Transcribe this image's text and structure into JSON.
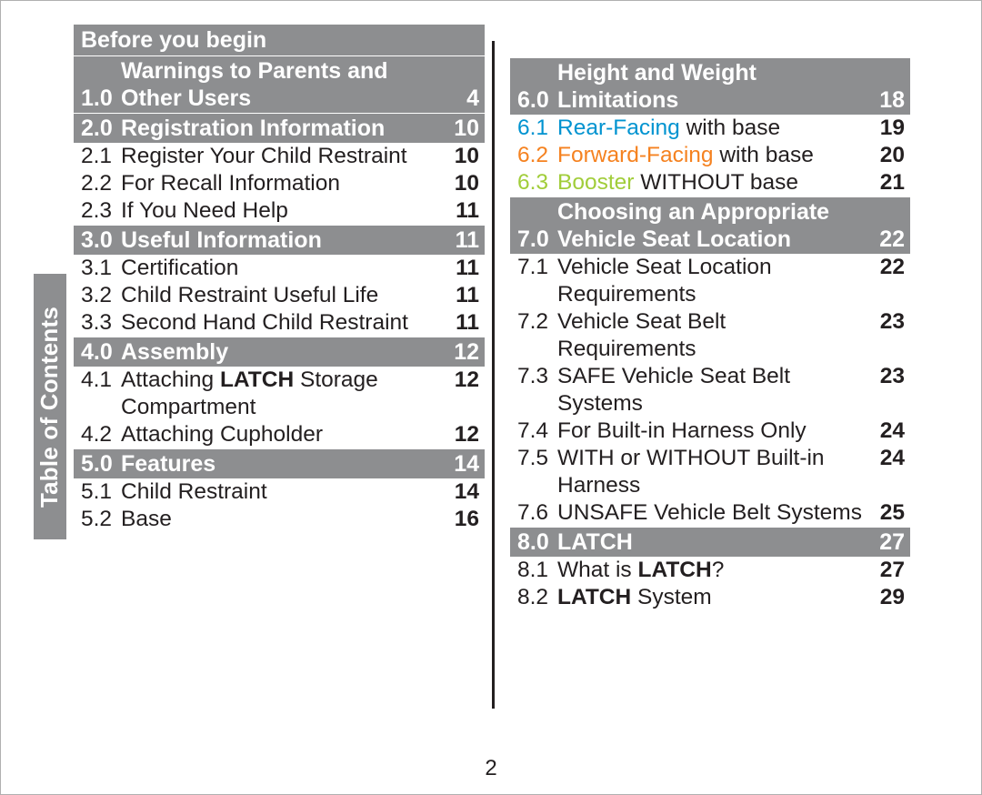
{
  "sideTab": "Table of Contents",
  "pageNumber": "2",
  "left": {
    "banner": "Before you begin",
    "sections": [
      {
        "num": "1.0",
        "title": "Warnings to Parents and Other Users",
        "page": "4",
        "multi": true
      },
      {
        "num": "2.0",
        "title": "Registration Information",
        "page": "10",
        "subs": [
          {
            "num": "2.1",
            "title": "Register Your Child Restraint",
            "page": "10"
          },
          {
            "num": "2.2",
            "title": "For Recall Information",
            "page": "10"
          },
          {
            "num": "2.3",
            "title": "If You Need Help",
            "page": "11"
          }
        ]
      },
      {
        "num": "3.0",
        "title": "Useful Information",
        "page": "11",
        "subs": [
          {
            "num": "3.1",
            "title": "Certification",
            "page": "11"
          },
          {
            "num": "3.2",
            "title": "Child Restraint Useful Life",
            "page": "11"
          },
          {
            "num": "3.3",
            "title": "Second Hand Child Restraint",
            "page": "11"
          }
        ]
      },
      {
        "num": "4.0",
        "title": "Assembly",
        "page": "12",
        "subs": [
          {
            "num": "4.1",
            "titleHtml": "Attaching <span class=\"b\">LATCH</span> Storage Compartment",
            "page": "12"
          },
          {
            "num": "4.2",
            "title": "Attaching Cupholder",
            "page": "12"
          }
        ]
      },
      {
        "num": "5.0",
        "title": "Features",
        "page": "14",
        "subs": [
          {
            "num": "5.1",
            "title": "Child Restraint",
            "page": "14"
          },
          {
            "num": "5.2",
            "title": "Base",
            "page": "16"
          }
        ]
      }
    ]
  },
  "right": {
    "sections": [
      {
        "num": "6.0",
        "title": "Height and Weight Limitations",
        "page": "18",
        "multi": true,
        "subs": [
          {
            "num": "6.1",
            "titleHtml": "Rear-Facing <span style=\"color:#231f20\">with base</span>",
            "page": "19",
            "color": "c-blue"
          },
          {
            "num": "6.2",
            "titleHtml": "Forward-Facing <span style=\"color:#231f20\">with base</span>",
            "page": "20",
            "color": "c-orange"
          },
          {
            "num": "6.3",
            "titleHtml": "Booster <span style=\"color:#231f20\">WITHOUT base</span>",
            "page": "21",
            "color": "c-green"
          }
        ]
      },
      {
        "num": "7.0",
        "title": "Choosing an Appropriate Vehicle Seat Location",
        "page": "22",
        "multi": true,
        "subs": [
          {
            "num": "7.1",
            "title": "Vehicle Seat Location Requirements",
            "page": "22"
          },
          {
            "num": "7.2",
            "title": "Vehicle Seat Belt Requirements",
            "page": "23"
          },
          {
            "num": "7.3",
            "title": "SAFE Vehicle Seat Belt Systems",
            "page": "23"
          },
          {
            "num": "7.4",
            "title": "For Built-in Harness Only",
            "page": "24"
          },
          {
            "num": "7.5",
            "title": "WITH or WITHOUT Built-in Harness",
            "page": "24"
          },
          {
            "num": "7.6",
            "title": "UNSAFE Vehicle Belt Systems",
            "page": "25"
          }
        ]
      },
      {
        "num": "8.0",
        "title": "LATCH",
        "page": "27",
        "subs": [
          {
            "num": "8.1",
            "titleHtml": "What is <span class=\"b\">LATCH</span>?",
            "page": "27"
          },
          {
            "num": "8.2",
            "titleHtml": "<span class=\"b\">LATCH</span> System",
            "page": "29"
          }
        ]
      }
    ]
  }
}
